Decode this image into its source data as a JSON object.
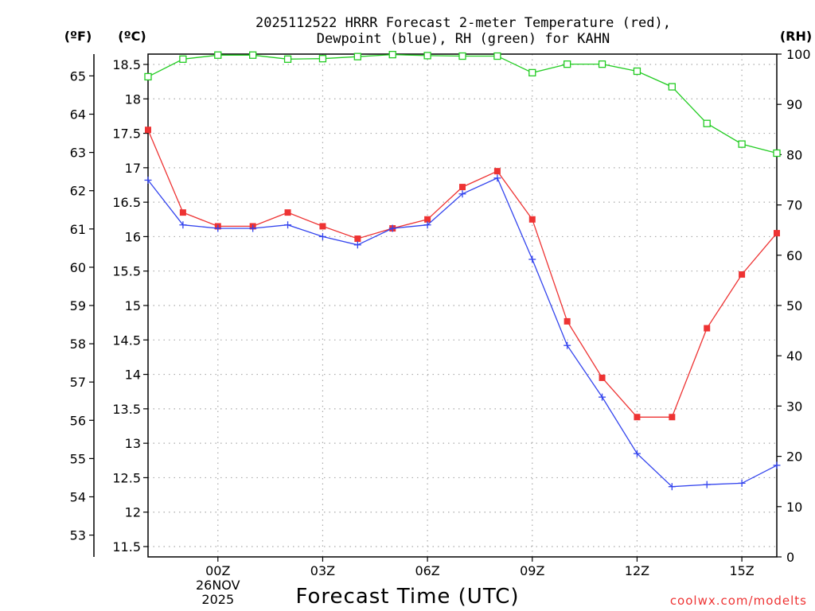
{
  "chart_data": {
    "type": "line",
    "title": {
      "line1": "2025112522 HRRR Forecast 2-meter Temperature (red),",
      "line2": "Dewpoint (blue), RH (green) for KAHN"
    },
    "xlabel": "Forecast Time (UTC)",
    "credit": "coolwx.com/modelts",
    "x_hours": [
      22,
      23,
      24,
      25,
      26,
      27,
      28,
      29,
      30,
      31,
      32,
      33,
      34,
      35,
      36,
      37,
      38,
      39,
      40
    ],
    "x_range": [
      22,
      40
    ],
    "x_ticks": [
      {
        "hour": 24,
        "label": "00Z"
      },
      {
        "hour": 27,
        "label": "03Z"
      },
      {
        "hour": 30,
        "label": "06Z"
      },
      {
        "hour": 33,
        "label": "09Z"
      },
      {
        "hour": 36,
        "label": "12Z"
      },
      {
        "hour": 39,
        "label": "15Z"
      }
    ],
    "date_label": {
      "hour": 24,
      "line1": "26NOV",
      "line2": "2025"
    },
    "axes": {
      "celsius": {
        "label": "(ºC)",
        "range": [
          11.35,
          18.65
        ],
        "ticks": [
          11.5,
          12,
          12.5,
          13,
          13.5,
          14,
          14.5,
          15,
          15.5,
          16,
          16.5,
          17,
          17.5,
          18,
          18.5
        ],
        "tick_labels": [
          "11.5",
          "12",
          "12.5",
          "13",
          "13.5",
          "14",
          "14.5",
          "15",
          "15.5",
          "16",
          "16.5",
          "17",
          "17.5",
          "18",
          "18.5"
        ]
      },
      "fahrenheit": {
        "label": "(ºF)",
        "ticks": [
          53,
          54,
          55,
          56,
          57,
          58,
          59,
          60,
          61,
          62,
          63,
          64,
          65
        ],
        "tick_labels": [
          "53",
          "54",
          "55",
          "56",
          "57",
          "58",
          "59",
          "60",
          "61",
          "62",
          "63",
          "64",
          "65"
        ]
      },
      "rh": {
        "label": "(RH)",
        "range": [
          0,
          100
        ],
        "ticks": [
          0,
          10,
          20,
          30,
          40,
          50,
          60,
          70,
          80,
          90,
          100
        ],
        "tick_labels": [
          "0",
          "10",
          "20",
          "30",
          "40",
          "50",
          "60",
          "70",
          "80",
          "90",
          "100"
        ]
      }
    },
    "grid": true,
    "series": [
      {
        "name": "2-meter Temperature",
        "axis": "celsius",
        "color": "#ee3333",
        "marker": "filled-square",
        "values": [
          17.55,
          16.35,
          16.15,
          16.15,
          16.35,
          16.15,
          15.97,
          16.12,
          16.25,
          16.72,
          16.95,
          16.25,
          14.77,
          13.95,
          13.38,
          13.38,
          14.67,
          15.45,
          16.05
        ]
      },
      {
        "name": "Dewpoint",
        "axis": "celsius",
        "color": "#3344ee",
        "marker": "plus",
        "values": [
          16.82,
          16.17,
          16.12,
          16.12,
          16.17,
          16.0,
          15.88,
          16.12,
          16.17,
          16.62,
          16.85,
          15.67,
          14.42,
          13.67,
          12.85,
          12.37,
          12.4,
          12.42,
          12.68
        ]
      },
      {
        "name": "RH",
        "axis": "rh",
        "color": "#22cc22",
        "marker": "open-square",
        "values": [
          95.5,
          99.0,
          99.8,
          99.8,
          99.0,
          99.1,
          99.5,
          99.9,
          99.7,
          99.6,
          99.6,
          96.3,
          98.0,
          98.0,
          96.6,
          93.5,
          86.2,
          82.1,
          80.3
        ]
      }
    ]
  }
}
